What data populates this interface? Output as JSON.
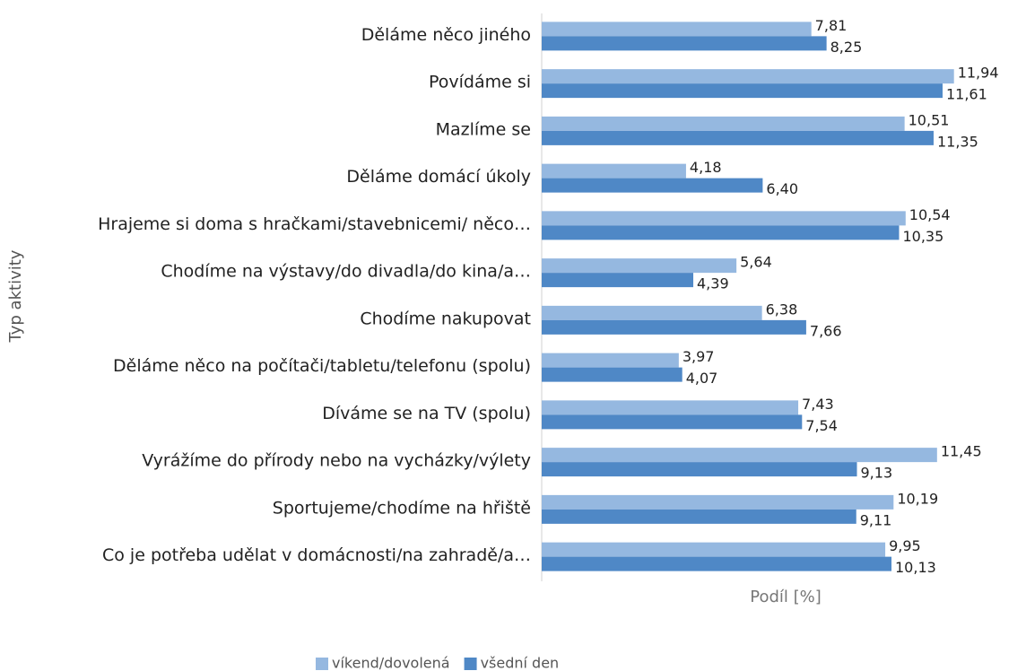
{
  "chart_data": {
    "type": "barh",
    "x_label": "Podíl [%]",
    "y_label": "Typ aktivity",
    "categories": [
      "Děláme něco jiného",
      "Povídáme si",
      "Mazlíme se",
      "Děláme domácí úkoly",
      "Hrajeme si doma s hračkami/stavebnicemi/ něco…",
      "Chodíme na výstavy/do divadla/do kina/a…",
      "Chodíme nakupovat",
      "Děláme něco na počítači/tabletu/telefonu (spolu)",
      "Díváme se na TV (spolu)",
      "Vyrážíme do přírody nebo na vycházky/výlety",
      "Sportujeme/chodíme na hřiště",
      "Co je potřeba udělat v domácnosti/na zahradě/a…"
    ],
    "series": [
      {
        "name": "víkend/dovolená",
        "color": "#95b8e0",
        "values": [
          7.81,
          11.94,
          10.51,
          4.18,
          10.54,
          5.64,
          6.38,
          3.97,
          7.43,
          11.45,
          10.19,
          9.95
        ],
        "value_labels": [
          "7,81",
          "11,94",
          "10,51",
          "4,18",
          "10,54",
          "5,64",
          "6,38",
          "3,97",
          "7,43",
          "11,45",
          "10,19",
          "9,95"
        ]
      },
      {
        "name": "všední den",
        "color": "#4f88c6",
        "values": [
          8.25,
          11.61,
          11.35,
          6.4,
          10.35,
          4.39,
          7.66,
          4.07,
          7.54,
          9.13,
          9.11,
          10.13
        ],
        "value_labels": [
          "8,25",
          "11,61",
          "11,35",
          "6,40",
          "10,35",
          "4,39",
          "7,66",
          "4,07",
          "7,54",
          "9,13",
          "9,11",
          "10,13"
        ]
      }
    ],
    "xlim": [
      0,
      12
    ],
    "legend": "bottom"
  }
}
